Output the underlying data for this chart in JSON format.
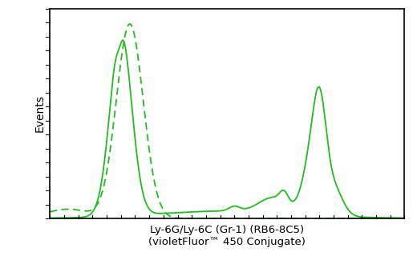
{
  "line_color": "#22bb22",
  "background_color": "#ffffff",
  "ylabel": "Events",
  "xlabel": "Ly-6G/Ly-6C (Gr-1) (RB6-8C5)\n(violetFluor™ 450 Conjugate)",
  "xlabel_fontsize": 9.5,
  "ylabel_fontsize": 10,
  "line_width": 1.3,
  "figsize": [
    5.2,
    3.5
  ],
  "dpi": 100
}
